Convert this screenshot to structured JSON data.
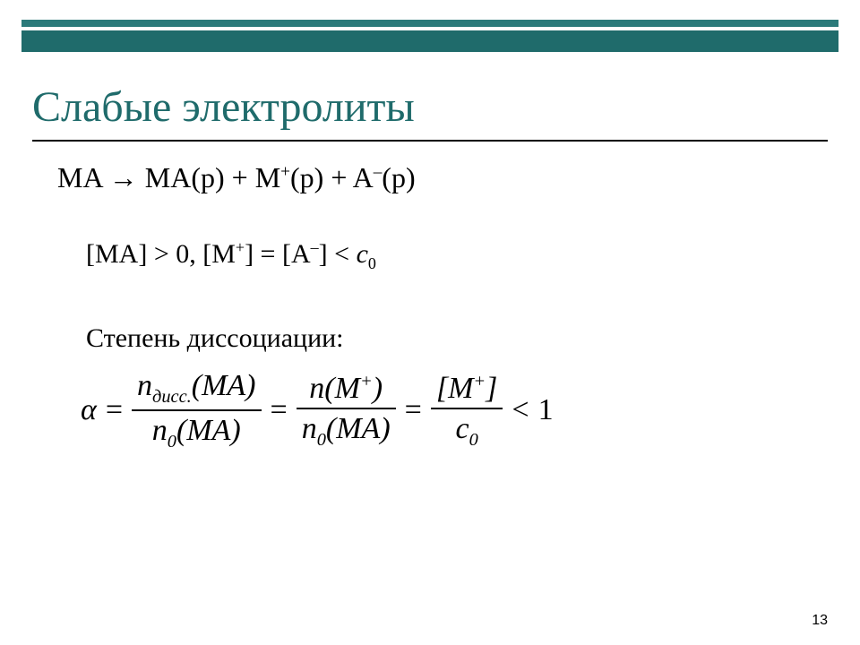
{
  "colors": {
    "bar_thin": "#2b7a7a",
    "bar_thick": "#1f6b6b",
    "title": "#1f6b6b",
    "text": "#000000",
    "background": "#ffffff"
  },
  "header": {
    "title": "Слабые электролиты"
  },
  "body": {
    "eq1": {
      "lhs": "MA",
      "arrow": "→",
      "rhs_plain": "MA(р) + M",
      "rhs_sup1": "+",
      "rhs_mid1": "(р) + A",
      "rhs_sup2": "–",
      "rhs_tail": "(р)"
    },
    "eq2": {
      "p1": "[MA] > 0, [M",
      "s1": "+",
      "p2": "] = [A",
      "s2": "–",
      "p3": "] < ",
      "c": "c",
      "sub0": "0"
    },
    "label_dissoc": "Степень диссоциации:",
    "formula": {
      "alpha": "α",
      "eq": "=",
      "lt": "<",
      "one": "1",
      "f1_num_pre": "n",
      "f1_num_sub": "дисс.",
      "f1_num_post": "(MA)",
      "f1_den_pre": "n",
      "f1_den_sub": "0",
      "f1_den_post": "(MA)",
      "f2_num_pre": "n(M",
      "f2_num_sup": "+",
      "f2_num_post": ")",
      "f2_den_pre": "n",
      "f2_den_sub": "0",
      "f2_den_post": "(MA)",
      "f3_num_pre": "[M",
      "f3_num_sup": "+",
      "f3_num_post": "]",
      "f3_den_pre": "c",
      "f3_den_sub": "0"
    }
  },
  "page_number": "13"
}
